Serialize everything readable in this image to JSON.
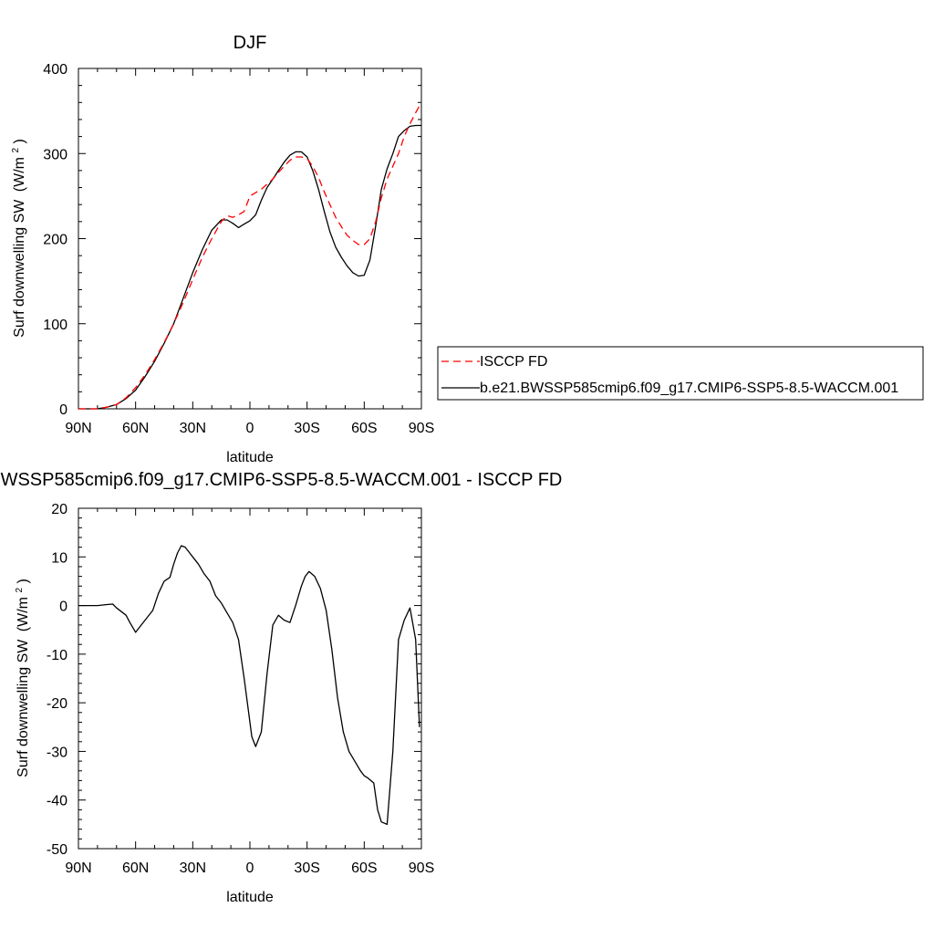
{
  "chart_data": [
    {
      "type": "line",
      "title": "DJF",
      "xlabel": "latitude",
      "ylabel": "Surf downwelling SW",
      "ylabel_unit_prefix": "(W/m",
      "ylabel_unit_exp": "2",
      "ylabel_unit_suffix": ")",
      "xlim": [
        -90,
        90
      ],
      "ylim": [
        0,
        400
      ],
      "xticks": [
        -90,
        -60,
        -30,
        0,
        30,
        60,
        90
      ],
      "xtick_labels": [
        "90N",
        "60N",
        "30N",
        "0",
        "30S",
        "60S",
        "90S"
      ],
      "yticks": [
        0,
        100,
        200,
        300,
        400
      ],
      "ytick_labels": [
        "0",
        "100",
        "200",
        "300",
        "400"
      ],
      "legend_position": "right",
      "series": [
        {
          "name": "ISCCP FD",
          "color": "#ff0000",
          "dash": "dashed",
          "x": [
            -90,
            -85,
            -80,
            -75,
            -70,
            -65,
            -60,
            -55,
            -50,
            -45,
            -40,
            -35,
            -30,
            -25,
            -20,
            -15,
            -12,
            -9,
            -6,
            -3,
            0,
            3,
            6,
            9,
            12,
            15,
            18,
            21,
            24,
            27,
            30,
            33,
            36,
            39,
            42,
            45,
            48,
            51,
            54,
            57,
            60,
            63,
            66,
            69,
            72,
            75,
            78,
            81,
            84,
            87,
            90
          ],
          "y": [
            0,
            0,
            0,
            2,
            5,
            13,
            25,
            40,
            58,
            78,
            100,
            125,
            152,
            178,
            200,
            220,
            227,
            225,
            228,
            232,
            250,
            254,
            258,
            264,
            270,
            278,
            285,
            292,
            296,
            296,
            294,
            285,
            272,
            255,
            240,
            225,
            214,
            204,
            198,
            193,
            193,
            200,
            220,
            248,
            270,
            285,
            300,
            320,
            335,
            348,
            360
          ]
        },
        {
          "name": "b.e21.BWSSP585cmip6.f09_g17.CMIP6-SSP5-8.5-WACCM.001",
          "color": "#000000",
          "dash": "solid",
          "x": [
            -90,
            -85,
            -80,
            -75,
            -70,
            -65,
            -60,
            -55,
            -50,
            -45,
            -40,
            -35,
            -30,
            -25,
            -20,
            -15,
            -12,
            -9,
            -6,
            -3,
            0,
            3,
            6,
            9,
            12,
            15,
            18,
            21,
            24,
            27,
            30,
            33,
            36,
            39,
            42,
            45,
            48,
            51,
            54,
            57,
            60,
            63,
            66,
            69,
            72,
            75,
            78,
            81,
            84,
            87,
            90
          ],
          "y": [
            0,
            0,
            0,
            2,
            5,
            12,
            22,
            38,
            56,
            77,
            100,
            130,
            160,
            187,
            210,
            222,
            222,
            218,
            213,
            217,
            221,
            228,
            245,
            260,
            270,
            280,
            290,
            298,
            302,
            302,
            296,
            280,
            258,
            232,
            208,
            190,
            178,
            168,
            160,
            156,
            157,
            175,
            215,
            258,
            282,
            300,
            320,
            327,
            332,
            333,
            333
          ]
        }
      ]
    },
    {
      "type": "line",
      "title": "b.e21.BWSSP585cmip6.f09_g17.CMIP6-SSP5-8.5-WACCM.001 - ISCCP FD",
      "xlabel": "latitude",
      "ylabel": "Surf downwelling SW",
      "ylabel_unit_prefix": "(W/m",
      "ylabel_unit_exp": "2",
      "ylabel_unit_suffix": ")",
      "xlim": [
        -90,
        90
      ],
      "ylim": [
        -50,
        20
      ],
      "xticks": [
        -90,
        -60,
        -30,
        0,
        30,
        60,
        90
      ],
      "xtick_labels": [
        "90N",
        "60N",
        "30N",
        "0",
        "30S",
        "60S",
        "90S"
      ],
      "yticks": [
        -50,
        -40,
        -30,
        -20,
        -10,
        0,
        10,
        20
      ],
      "ytick_labels": [
        "-50",
        "-40",
        "-30",
        "-20",
        "-10",
        "0",
        "10",
        "20"
      ],
      "series": [
        {
          "color": "#000000",
          "dash": "solid",
          "x": [
            -90,
            -80,
            -75,
            -72,
            -70,
            -65,
            -63,
            -60,
            -57,
            -54,
            -51,
            -48,
            -45,
            -42,
            -40,
            -38,
            -36,
            -34,
            -32,
            -30,
            -27,
            -24,
            -21,
            -18,
            -15,
            -12,
            -9,
            -6,
            -3,
            -1,
            1,
            3,
            6,
            9,
            12,
            15,
            18,
            21,
            24,
            27,
            29,
            31,
            34,
            37,
            40,
            43,
            46,
            49,
            52,
            55,
            58,
            60,
            62,
            65,
            67,
            69,
            72,
            75,
            78,
            81,
            84,
            87,
            89
          ],
          "y": [
            0,
            0,
            0.2,
            0.3,
            -0.5,
            -2,
            -3.5,
            -5.5,
            -4,
            -2.5,
            -1,
            2.5,
            5,
            5.8,
            8.5,
            10.8,
            12.3,
            12,
            11,
            10,
            8.5,
            6.5,
            5,
            2,
            0.5,
            -1.5,
            -3.5,
            -7,
            -15,
            -21,
            -27,
            -29,
            -26,
            -14,
            -4,
            -2,
            -3,
            -3.5,
            0,
            4,
            6,
            7,
            6,
            3.5,
            -1,
            -9,
            -19,
            -26,
            -30,
            -32,
            -34,
            -35,
            -35.5,
            -36.5,
            -42,
            -44.5,
            -45,
            -30,
            -7,
            -3,
            -0.5,
            -7,
            -25
          ]
        }
      ]
    }
  ]
}
